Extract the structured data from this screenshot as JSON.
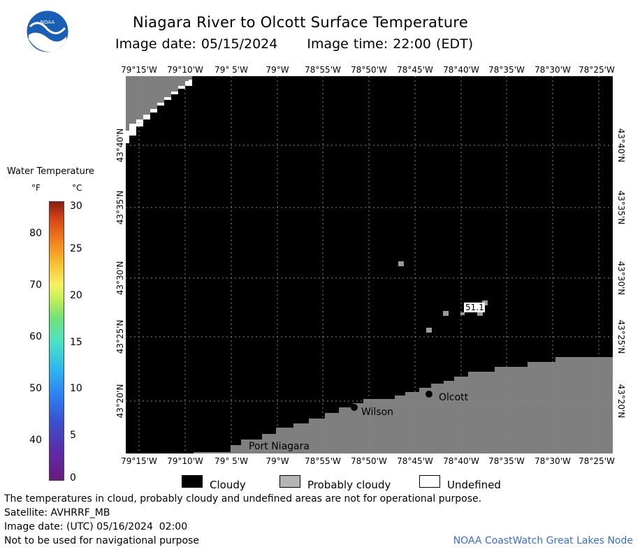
{
  "header": {
    "title": "Niagara River to Olcott Surface Temperature",
    "image_date": "Image date: 05/15/2024",
    "image_time": "Image time: 22:00 (EDT)"
  },
  "logo": {
    "text": "NOAA",
    "icon": "noaa-logo-icon"
  },
  "legend": {
    "title": "Water Temperature",
    "unit_f": "°F",
    "unit_c": "°C",
    "fahrenheit_ticks": [
      "80",
      "70",
      "60",
      "50",
      "40"
    ],
    "celsius_ticks": [
      "30",
      "25",
      "20",
      "15",
      "10",
      "5",
      "0"
    ]
  },
  "map": {
    "longitude_labels": [
      "79°15'W",
      "79°10'W",
      "79° 5'W",
      "79°W",
      "78°55'W",
      "78°50'W",
      "78°45'W",
      "78°40'W",
      "78°35'W",
      "78°30'W",
      "78°25'W"
    ],
    "latitude_labels": [
      "43°40'N",
      "43°35'N",
      "43°30'N",
      "43°25'N",
      "43°20'N"
    ],
    "places": {
      "olcott": "Olcott",
      "wilson": "Wilson",
      "port_niagara": "Port Niagara"
    },
    "temperature_readout": "51.1",
    "colors": {
      "cloudy": "#000000",
      "probably_cloudy": "#7f7f7f",
      "undefined": "#ffffff"
    }
  },
  "key": {
    "cloudy": "Cloudy",
    "probably_cloudy": "Probably cloudy",
    "undefined": "Undefined"
  },
  "footer": {
    "disclaimer": "The temperatures in cloud, probably cloudy and undefined areas are not for operational purpose.",
    "satellite": "Satellite: AVHRRF_MB",
    "utc_date": "Image date: (UTC) 05/16/2024  02:00",
    "navigation": "Not to be used for navigational purpose",
    "credit": "NOAA CoastWatch Great Lakes Node"
  }
}
